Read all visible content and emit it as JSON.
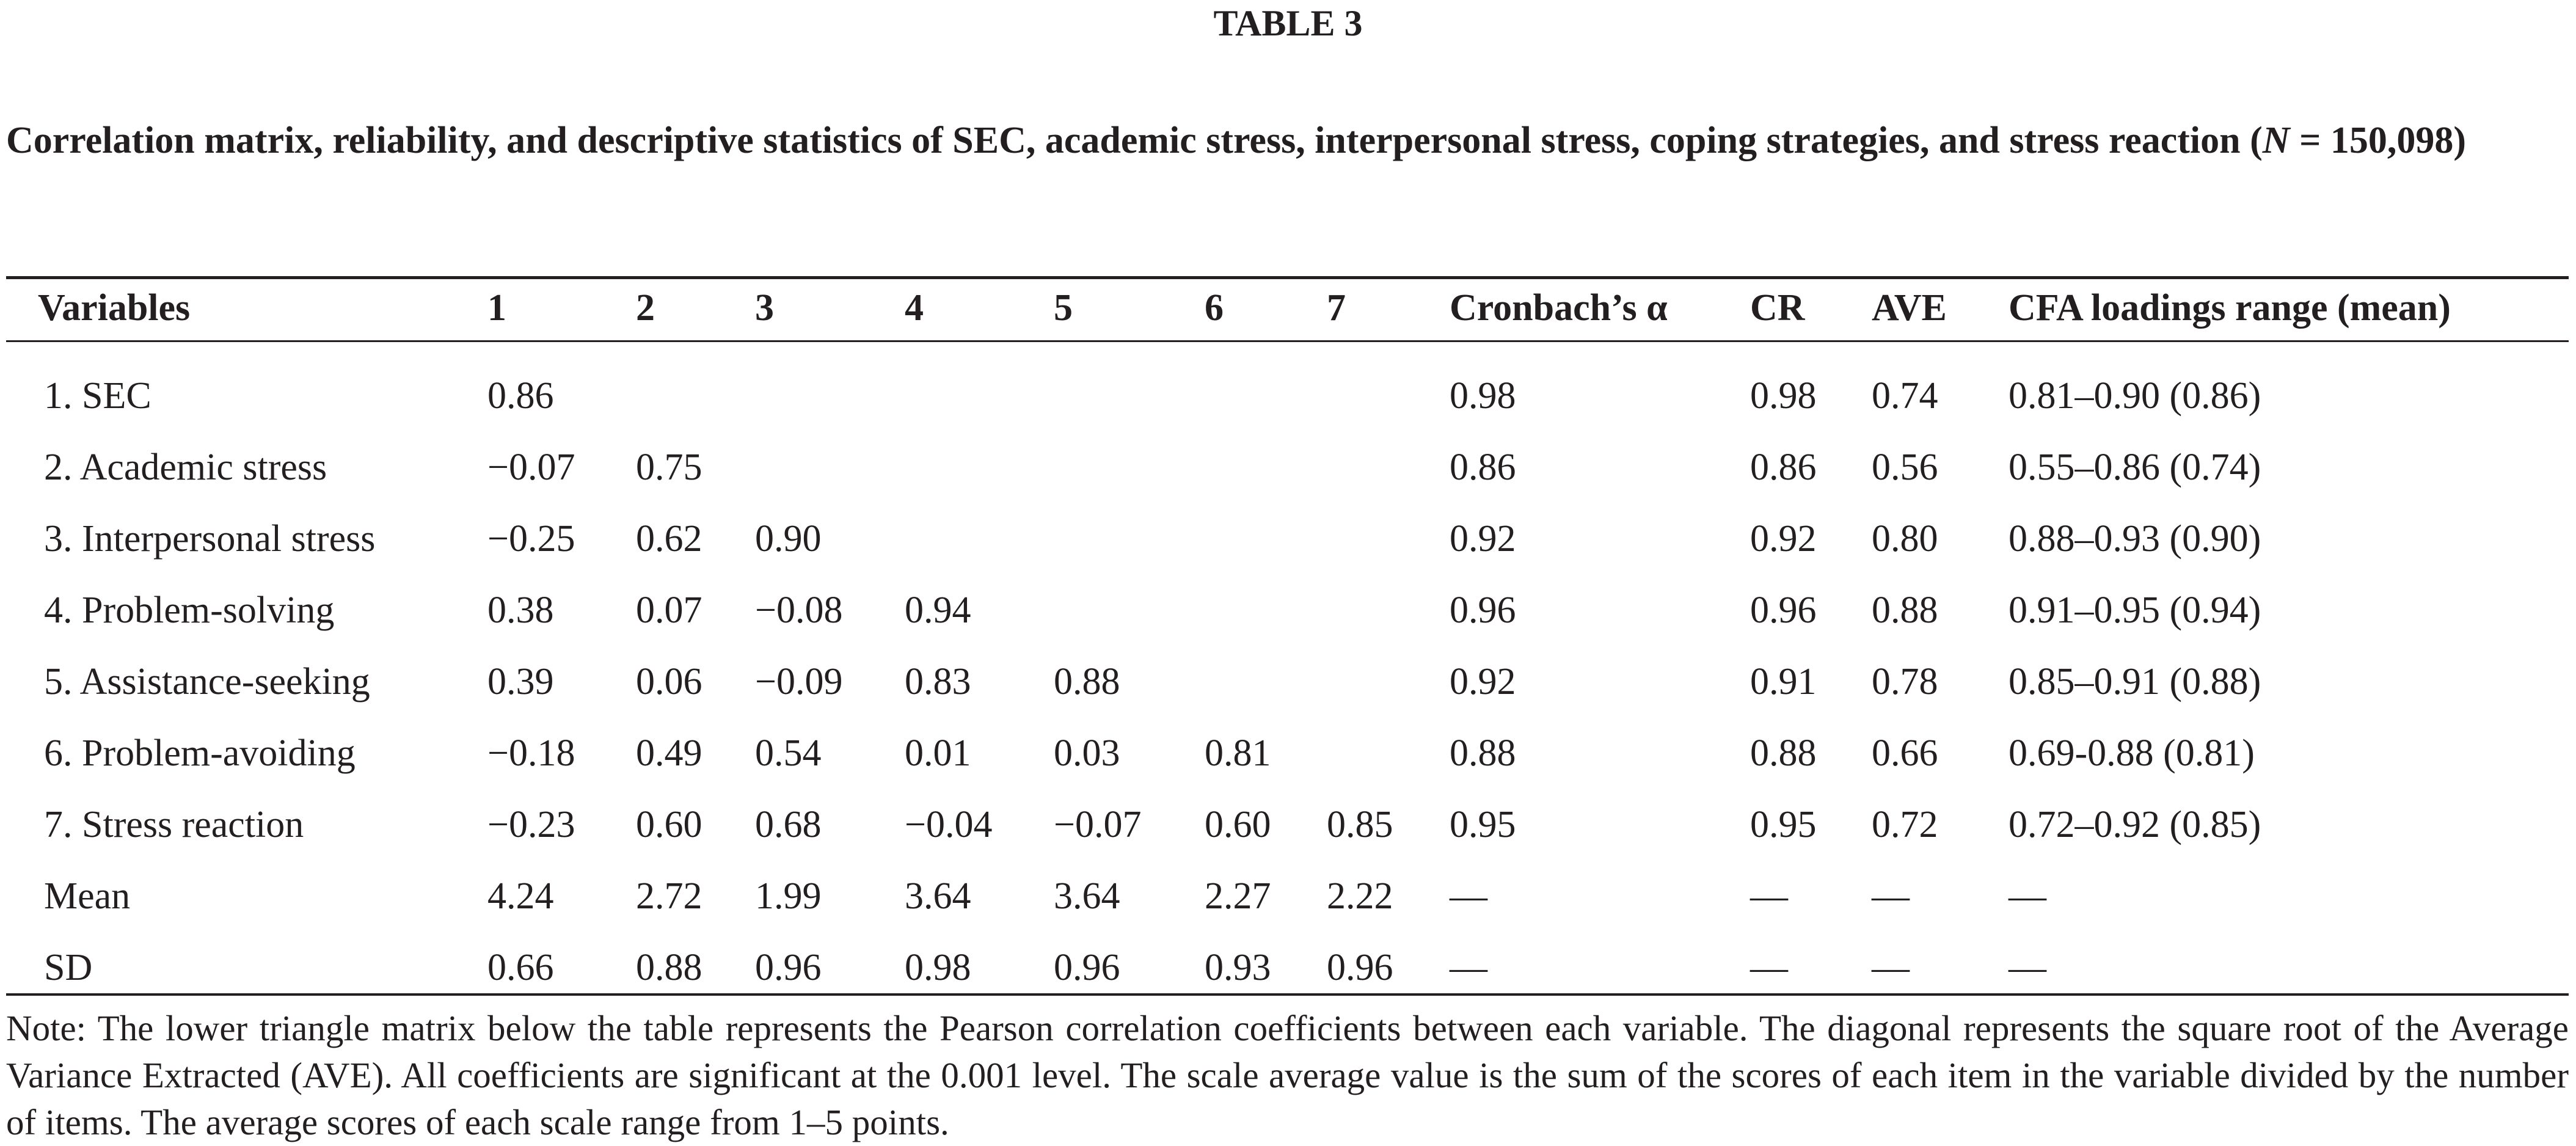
{
  "table_label": "TABLE 3",
  "caption": {
    "text": "Correlation matrix, reliability, and descriptive statistics of SEC, academic stress, interpersonal stress, coping strategies, and stress reaction (",
    "n_symbol": "N",
    "n_value": " = 150,098)"
  },
  "headers": {
    "variables": "Variables",
    "c1": "1",
    "c2": "2",
    "c3": "3",
    "c4": "4",
    "c5": "5",
    "c6": "6",
    "c7": "7",
    "alpha": "Cronbach’s α",
    "cr": "CR",
    "ave": "AVE",
    "cfa": "CFA loadings range (mean)"
  },
  "rows": [
    {
      "variable": "1. SEC",
      "c1": "0.86",
      "c2": "",
      "c3": "",
      "c4": "",
      "c5": "",
      "c6": "",
      "c7": "",
      "alpha": "0.98",
      "cr": "0.98",
      "ave": "0.74",
      "cfa": "0.81–0.90 (0.86)"
    },
    {
      "variable": "2. Academic stress",
      "c1": "−0.07",
      "c2": "0.75",
      "c3": "",
      "c4": "",
      "c5": "",
      "c6": "",
      "c7": "",
      "alpha": "0.86",
      "cr": "0.86",
      "ave": "0.56",
      "cfa": "0.55–0.86 (0.74)"
    },
    {
      "variable": "3. Interpersonal stress",
      "c1": "−0.25",
      "c2": "0.62",
      "c3": "0.90",
      "c4": "",
      "c5": "",
      "c6": "",
      "c7": "",
      "alpha": "0.92",
      "cr": "0.92",
      "ave": "0.80",
      "cfa": "0.88–0.93 (0.90)"
    },
    {
      "variable": "4. Problem-solving",
      "c1": "0.38",
      "c2": "0.07",
      "c3": "−0.08",
      "c4": "0.94",
      "c5": "",
      "c6": "",
      "c7": "",
      "alpha": "0.96",
      "cr": "0.96",
      "ave": "0.88",
      "cfa": "0.91–0.95 (0.94)"
    },
    {
      "variable": "5. Assistance-seeking",
      "c1": "0.39",
      "c2": "0.06",
      "c3": "−0.09",
      "c4": "0.83",
      "c5": "0.88",
      "c6": "",
      "c7": "",
      "alpha": "0.92",
      "cr": "0.91",
      "ave": "0.78",
      "cfa": "0.85–0.91 (0.88)"
    },
    {
      "variable": "6. Problem-avoiding",
      "c1": "−0.18",
      "c2": "0.49",
      "c3": "0.54",
      "c4": "0.01",
      "c5": "0.03",
      "c6": "0.81",
      "c7": "",
      "alpha": "0.88",
      "cr": "0.88",
      "ave": "0.66",
      "cfa": "0.69-0.88 (0.81)"
    },
    {
      "variable": "7. Stress reaction",
      "c1": "−0.23",
      "c2": "0.60",
      "c3": "0.68",
      "c4": "−0.04",
      "c5": "−0.07",
      "c6": "0.60",
      "c7": "0.85",
      "alpha": "0.95",
      "cr": "0.95",
      "ave": "0.72",
      "cfa": "0.72–0.92 (0.85)"
    },
    {
      "variable": "Mean",
      "c1": "4.24",
      "c2": "2.72",
      "c3": "1.99",
      "c4": "3.64",
      "c5": "3.64",
      "c6": "2.27",
      "c7": "2.22",
      "alpha": "—",
      "cr": "—",
      "ave": "—",
      "cfa": "—"
    },
    {
      "variable": "SD",
      "c1": "0.66",
      "c2": "0.88",
      "c3": "0.96",
      "c4": "0.98",
      "c5": "0.96",
      "c6": "0.93",
      "c7": "0.96",
      "alpha": "—",
      "cr": "—",
      "ave": "—",
      "cfa": "—"
    }
  ],
  "note": "Note: The lower triangle matrix below the table represents the Pearson correlation coefficients between each variable. The diagonal represents the square root of the Average Variance Extracted (AVE). All coefficients are significant at the 0.001 level. The scale average value is the sum of the scores of each item in the variable divided by the number of items. The average scores of each scale range from 1–5 points."
}
